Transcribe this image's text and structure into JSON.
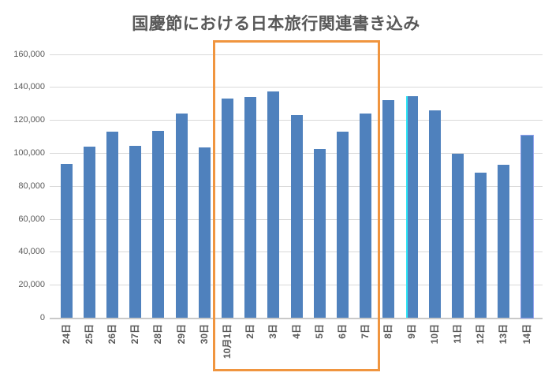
{
  "chart_data": {
    "type": "bar",
    "title": "国慶節における日本旅行関連書き込み",
    "xlabel": "",
    "ylabel": "",
    "categories": [
      "24日",
      "25日",
      "26日",
      "27日",
      "28日",
      "29日",
      "30日",
      "10月1日",
      "2日",
      "3日",
      "4日",
      "5日",
      "6日",
      "7日",
      "8日",
      "9日",
      "10日",
      "11日",
      "12日",
      "13日",
      "14日"
    ],
    "values": [
      93500,
      104000,
      113000,
      104500,
      113500,
      124000,
      103500,
      133000,
      134000,
      137500,
      123000,
      102500,
      113000,
      124000,
      132000,
      134500,
      126000,
      99500,
      88000,
      93000,
      110500
    ],
    "ylim": [
      0,
      160000
    ],
    "ytick_labels": [
      "0",
      "20,000",
      "40,000",
      "60,000",
      "80,000",
      "100,000",
      "120,000",
      "140,000",
      "160,000"
    ],
    "grid": true,
    "legend": false,
    "highlight_box": {
      "from_category": "10月1日",
      "to_category": "7日",
      "from_index": 7,
      "to_index": 13
    },
    "annotations": {
      "selection_edge_category": "9日",
      "selected_outline_category": "14日"
    },
    "colors": {
      "bar": "#4F81BD",
      "gridline": "#D9D9D9",
      "axis_line": "#C9C9C9",
      "highlight_border": "#F0953F",
      "axis_label": "#595959",
      "title": "#595959",
      "selection_edge_cyan": "#30E5F5",
      "selected_bar_outline": "#8F9FEC"
    }
  }
}
